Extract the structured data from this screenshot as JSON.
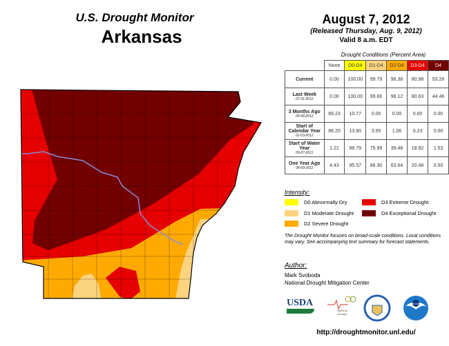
{
  "header": {
    "title": "U.S. Drought Monitor",
    "state": "Arkansas",
    "date": "August 7, 2012",
    "released": "(Released Thursday, Aug. 9, 2012)",
    "valid": "Valid 8 a.m. EDT"
  },
  "table": {
    "caption": "Drought Conditions (Percent Area)",
    "columns": [
      "None",
      "D0-D4",
      "D1-D4",
      "D2-D4",
      "D3-D4",
      "D4"
    ],
    "column_colors": [
      "#ffffff",
      "#ffff00",
      "#fcd37f",
      "#ffaa00",
      "#e60000",
      "#730000"
    ],
    "rows": [
      {
        "label": "Current",
        "date": "",
        "values": [
          "0.00",
          "100.00",
          "99.79",
          "96.38",
          "80.98",
          "53.26"
        ]
      },
      {
        "label": "Last Week",
        "date": "07-31-2012",
        "values": [
          "0.00",
          "100.00",
          "99.66",
          "96.12",
          "80.63",
          "44.46"
        ]
      },
      {
        "label": "3 Months Ago",
        "date": "05-08-2012",
        "values": [
          "89.23",
          "10.77",
          "0.00",
          "0.00",
          "0.00",
          "0.00"
        ]
      },
      {
        "label": "Start of Calendar Year",
        "date": "01-03-2012",
        "values": [
          "86.20",
          "13.80",
          "3.95",
          "1.06",
          "0.23",
          "0.00"
        ]
      },
      {
        "label": "Start of Water Year",
        "date": "09-27-2011",
        "values": [
          "1.21",
          "98.79",
          "75.99",
          "39.48",
          "18.92",
          "1.53"
        ]
      },
      {
        "label": "One Year Ago",
        "date": "08-09-2011",
        "values": [
          "4.43",
          "95.57",
          "86.30",
          "63.64",
          "20.48",
          "0.50"
        ]
      }
    ]
  },
  "legend": {
    "title": "Intensity:",
    "items": [
      {
        "label": "D0 Abnormally Dry",
        "color": "#ffff00"
      },
      {
        "label": "D1 Moderate Drought",
        "color": "#fcd37f"
      },
      {
        "label": "D2 Severe Drought",
        "color": "#ffaa00"
      },
      {
        "label": "D3 Extreme Drought",
        "color": "#e60000"
      },
      {
        "label": "D4 Exceptional Drought",
        "color": "#730000"
      }
    ]
  },
  "note": "The Drought Monitor focuses on broad-scale conditions. Local conditions may vary. See accompanying text summary for forecast statements.",
  "author": {
    "title": "Author:",
    "name": "Mark Svoboda",
    "org": "National Drought Mitigation Center"
  },
  "logos": {
    "usda": "USDA",
    "ndmc": "National Drought Mitigation Center",
    "noaa": "NOAA"
  },
  "url": "http://droughtmonitor.unl.edu/"
}
